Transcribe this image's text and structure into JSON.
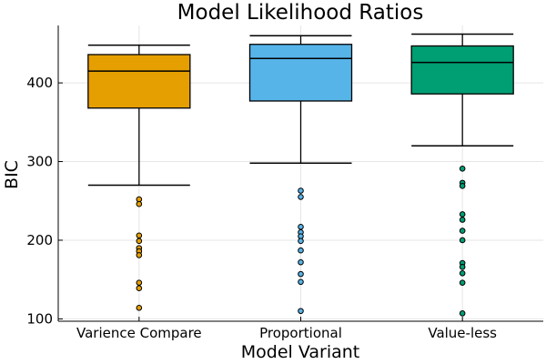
{
  "chart_data": {
    "type": "box",
    "title": "Model Likelihood Ratios",
    "xlabel": "Model Variant",
    "ylabel": "BIC",
    "ylim": [
      97,
      473
    ],
    "yticks": [
      100,
      200,
      300,
      400
    ],
    "grid": true,
    "legend": "none",
    "categories": [
      "Varience Compare",
      "Proportional",
      "Value-less"
    ],
    "colors": [
      "#E69F00",
      "#56B4E9",
      "#009E73"
    ],
    "boxes": [
      {
        "category": "Varience Compare",
        "whisker_low": 270,
        "q1": 368,
        "median": 415,
        "q3": 436,
        "whisker_high": 448,
        "outliers": [
          252,
          246,
          206,
          199,
          190,
          186,
          181,
          146,
          139,
          114
        ]
      },
      {
        "category": "Proportional",
        "whisker_low": 298,
        "q1": 377,
        "median": 431,
        "q3": 449,
        "whisker_high": 460,
        "outliers": [
          263,
          255,
          217,
          210,
          205,
          199,
          187,
          172,
          157,
          147,
          110
        ]
      },
      {
        "category": "Value-less",
        "whisker_low": 320,
        "q1": 386,
        "median": 426,
        "q3": 447,
        "whisker_high": 462,
        "outliers": [
          291,
          273,
          269,
          233,
          226,
          212,
          200,
          171,
          166,
          158,
          146,
          107
        ]
      }
    ]
  }
}
